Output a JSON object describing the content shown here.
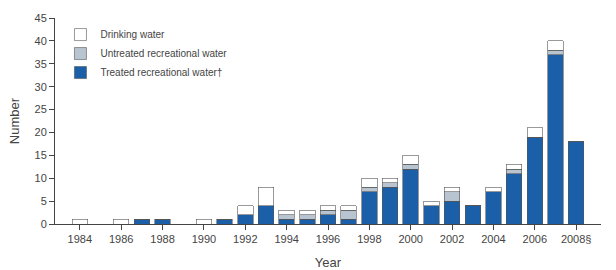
{
  "chart_data": {
    "type": "bar",
    "stacked": true,
    "xlabel": "Year",
    "ylabel": "Number",
    "x": [
      1984,
      1986,
      1987,
      1988,
      1990,
      1991,
      1992,
      1993,
      1994,
      1995,
      1996,
      1997,
      1998,
      1999,
      2000,
      2001,
      2002,
      2003,
      2004,
      2005,
      2006,
      2007,
      2008
    ],
    "series": [
      {
        "name": "Treated recreational water†",
        "color": "#1a5fa8",
        "values": [
          0,
          0,
          1,
          1,
          0,
          1,
          2,
          4,
          1,
          1,
          2,
          1,
          7,
          8,
          12,
          4,
          5,
          4,
          7,
          11,
          19,
          37,
          18
        ]
      },
      {
        "name": "Untreated recreational water",
        "color": "#b8c4d0",
        "values": [
          0,
          0,
          0,
          0,
          0,
          0,
          0,
          0,
          1,
          1,
          1,
          2,
          1,
          1,
          1,
          0,
          2,
          0,
          0,
          1,
          0,
          1,
          0
        ]
      },
      {
        "name": "Drinking water",
        "color": "#ffffff",
        "values": [
          1,
          1,
          0,
          0,
          1,
          0,
          2,
          4,
          1,
          1,
          1,
          1,
          2,
          1,
          2,
          1,
          1,
          0,
          1,
          1,
          2,
          2,
          0
        ]
      }
    ],
    "xlim": [
      1982.8,
      2009.2
    ],
    "xticks": [
      1984,
      1986,
      1988,
      1990,
      1992,
      1994,
      1996,
      1998,
      2000,
      2002,
      2004,
      2006,
      {
        "value": 2008,
        "label": "2008§"
      }
    ],
    "ylim": [
      0,
      45
    ],
    "yticks": [
      0,
      5,
      10,
      15,
      20,
      25,
      30,
      35,
      40,
      45
    ],
    "grid": false,
    "legend": "upper left"
  }
}
